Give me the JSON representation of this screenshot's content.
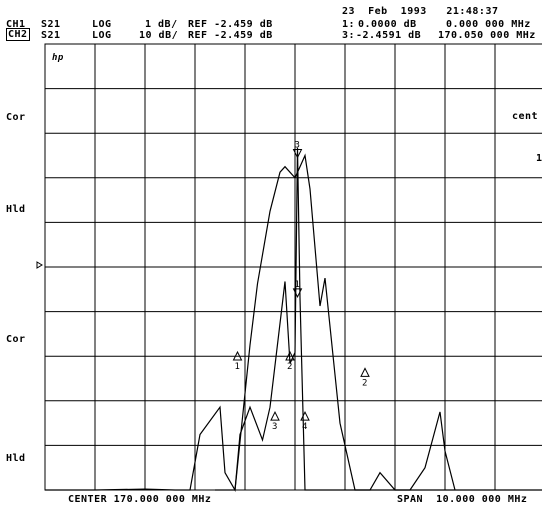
{
  "date_line": "23  Feb  1993   21:48:37",
  "channels": [
    {
      "id": "CH1",
      "param": "S21",
      "format": "LOG",
      "scale": "1 dB/",
      "ref": "REF -2.459 dB",
      "marker_label": "1:",
      "marker_value": "0.0000 dB",
      "marker_freq": "0.000 000 MHz"
    },
    {
      "id": "CH2",
      "param": "S21",
      "format": "LOG",
      "scale": "10 dB/",
      "ref": "REF -2.459 dB",
      "marker_label": "3:",
      "marker_value": "-2.4591 dB",
      "marker_freq": "170.050 000 MHz"
    }
  ],
  "left_labels": [
    "Cor",
    "Hld",
    "Cor",
    "Hld"
  ],
  "right_labels": [
    "cent",
    "1"
  ],
  "hp_logo": "hp",
  "footer": {
    "center": "CENTER 170.000 000 MHz",
    "span": "SPAN  10.000 000 MHz"
  },
  "chart_data": {
    "type": "line",
    "xlabel": "",
    "ylabel": "",
    "x_range_MHz": [
      165,
      175
    ],
    "grid": {
      "x_divisions": 10,
      "y_divisions": 8
    },
    "series": [
      {
        "name": "",
        "note": "CH1 upper trace (1 dB/div)",
        "x": [
          168.4,
          168.8,
          169.1,
          169.25,
          169.5,
          169.7,
          169.8,
          170.0,
          170.1,
          170.2,
          170.3,
          170.5,
          170.6,
          170.9,
          171.2,
          171.4,
          171.6,
          171.9,
          172.3,
          172.6,
          172.9,
          173.0,
          173.2
        ],
        "y": [
          -8.0,
          -6.0,
          -3.4,
          -2.3,
          -1.0,
          -0.3,
          -0.2,
          -0.4,
          -0.2,
          0.0,
          -0.6,
          -2.7,
          -2.2,
          -4.8,
          -6.3,
          -6.6,
          -6.8,
          -7.5,
          -6.8,
          -5.6,
          -4.6,
          -5.3,
          -8.0
        ]
      },
      {
        "name": "",
        "note": "CH2 lower trace (10 dB/div)",
        "x": [
          165.0,
          166.0,
          167.0,
          167.6,
          167.9,
          168.1,
          168.5,
          168.6,
          168.8,
          168.9,
          169.1,
          169.35,
          169.5,
          169.8,
          169.9,
          170.0,
          170.05,
          170.1,
          170.2,
          170.3,
          171.2,
          171.5,
          171.7,
          172.0,
          172.4,
          172.9,
          173.1,
          173.4,
          174.0,
          174.5,
          175.0
        ],
        "y": [
          -80.0,
          -78.0,
          -65.0,
          -80.0,
          -76.0,
          -55.0,
          -50.0,
          -62.0,
          -82.0,
          -55.0,
          -50.0,
          -56.0,
          -50.0,
          -27.0,
          -42.0,
          -40.0,
          -2.5,
          -30.0,
          -68.0,
          -90.0,
          -90.0,
          -75.0,
          -62.0,
          -80.0,
          -90.0,
          -90.0,
          -78.0,
          -75.0,
          -82.0,
          -75.0,
          -72.0
        ]
      }
    ],
    "markers": [
      {
        "label": "1",
        "x": 168.85,
        "y": -41.0
      },
      {
        "label": "2",
        "x": 169.9,
        "y": -41.0
      },
      {
        "label": "3",
        "x": 169.6,
        "y": -52.0
      },
      {
        "label": "4",
        "x": 170.2,
        "y": -52.0
      },
      {
        "label": "1",
        "x": 170.05,
        "y": -2.5
      },
      {
        "label": "3",
        "x": 170.05,
        "y": 0.0
      },
      {
        "label": "2",
        "x": 171.4,
        "y": -44.0
      }
    ]
  }
}
